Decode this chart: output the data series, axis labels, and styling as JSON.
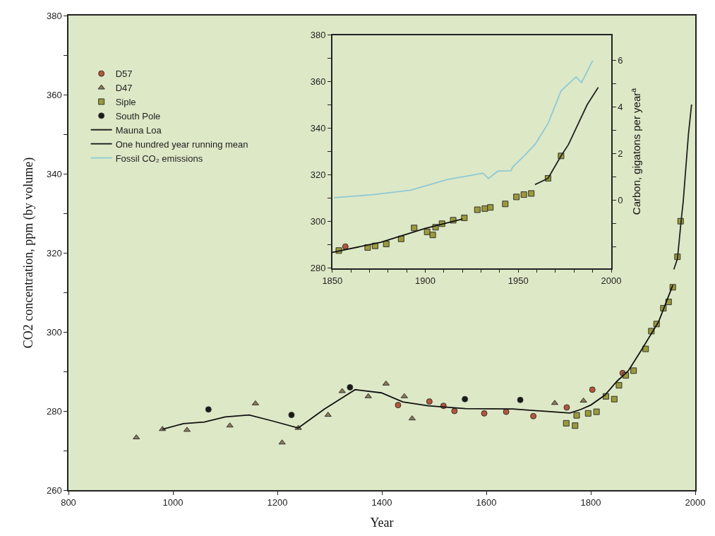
{
  "chart_data": [
    {
      "type": "scatter",
      "xlabel": "Year",
      "ylabel": "CO2 concentration, ppm (by volume)",
      "xlim": [
        800,
        2000
      ],
      "xticks": [
        800,
        1000,
        1200,
        1400,
        1600,
        1800,
        2000
      ],
      "ylim": [
        260,
        380
      ],
      "yticks": [
        260,
        {
          "value": 270,
          "label": null
        },
        280,
        {
          "value": 290,
          "label": null
        },
        300,
        {
          "value": 310,
          "label": null
        },
        320,
        {
          "value": 330,
          "label": null
        },
        340,
        {
          "value": 350,
          "label": null
        },
        360,
        {
          "value": 370,
          "label": null
        },
        380
      ],
      "grid": false,
      "legend": "top left",
      "series": [
        {
          "name": "D57",
          "type": "scatter",
          "marker": "circle",
          "color": "#b5553a",
          "x": [
            1431,
            1491,
            1518,
            1539,
            1596,
            1638,
            1690,
            1754,
            1803,
            1861
          ],
          "values": [
            281.5,
            282.4,
            281.3,
            280,
            279.4,
            279.8,
            278.7,
            280.9,
            285.4,
            289.6
          ]
        },
        {
          "name": "D47",
          "type": "scatter",
          "marker": "triangle",
          "color": "#8a7a5a",
          "x": [
            930,
            980,
            1027,
            1109,
            1158,
            1209,
            1240,
            1297,
            1324,
            1374,
            1408,
            1443,
            1458,
            1731,
            1786
          ],
          "values": [
            273.3,
            275.4,
            275.2,
            276.3,
            281.9,
            272,
            275.7,
            279,
            285,
            283.7,
            286.9,
            283.7,
            278.1,
            282,
            282.6
          ]
        },
        {
          "name": "Siple",
          "type": "scatter",
          "marker": "square",
          "color": "#9a9a3a",
          "x": [
            1753,
            1770,
            1773,
            1795,
            1811,
            1829,
            1845,
            1854,
            1867,
            1882,
            1905,
            1916,
            1926,
            1939,
            1949,
            1957,
            1966,
            1972
          ],
          "values": [
            276.9,
            276.3,
            278.9,
            279.4,
            279.8,
            283.7,
            283,
            286.5,
            289,
            290.2,
            295.7,
            300.2,
            302,
            306,
            307.6,
            311.3,
            319,
            328
          ]
        },
        {
          "name": "South Pole",
          "type": "scatter",
          "marker": "circle",
          "color": "#1a1a1a",
          "x": [
            1068,
            1227,
            1339,
            1559,
            1665
          ],
          "values": [
            280.4,
            279,
            286,
            283,
            282.8
          ]
        },
        {
          "name": "Mauna Loa",
          "type": "line",
          "color": "#222222",
          "x": [
            1959,
            1966,
            1973,
            1977,
            1987,
            1993
          ],
          "values": [
            315.8,
            318.5,
            328.1,
            333,
            350,
            357.5
          ]
        },
        {
          "name": "One hundred year running mean",
          "type": "line",
          "color": "#111111",
          "x": [
            980,
            1020,
            1060,
            1100,
            1146,
            1190,
            1240,
            1290,
            1349,
            1399,
            1440,
            1489,
            1560,
            1651,
            1727,
            1760,
            1781,
            1800,
            1827,
            1850,
            1872,
            1895,
            1930,
            1957
          ],
          "values": [
            275.4,
            276.8,
            277.2,
            278.5,
            279,
            277.5,
            275.7,
            280.5,
            285.4,
            284.6,
            282.3,
            281.3,
            280.6,
            280.5,
            279.8,
            279.5,
            280.4,
            281.5,
            284,
            287.5,
            290.2,
            295,
            302.6,
            311.8
          ]
        }
      ]
    },
    {
      "type": "scatter",
      "y2label": "Carbon, gigatons per year$^{a}$",
      "xlim": [
        1850,
        2000
      ],
      "xticks": [
        1850,
        {
          "value": 1860,
          "label": null
        },
        {
          "value": 1870,
          "label": null
        },
        {
          "value": 1880,
          "label": null
        },
        {
          "value": 1890,
          "label": null
        },
        1900,
        {
          "value": 1910,
          "label": null
        },
        {
          "value": 1920,
          "label": null
        },
        {
          "value": 1930,
          "label": null
        },
        {
          "value": 1940,
          "label": null
        },
        1950,
        {
          "value": 1960,
          "label": null
        },
        {
          "value": 1970,
          "label": null
        },
        {
          "value": 1980,
          "label": null
        },
        {
          "value": 1990,
          "label": null
        },
        2000
      ],
      "ylim": [
        280,
        380
      ],
      "yticks": [
        280,
        {
          "value": 290,
          "label": null
        },
        300,
        {
          "value": 310,
          "label": null
        },
        320,
        {
          "value": 330,
          "label": null
        },
        340,
        {
          "value": 350,
          "label": null
        },
        360,
        {
          "value": 370,
          "label": null
        },
        380
      ],
      "y2lim": [
        -2.9,
        7.1
      ],
      "y2ticks": [
        {
          "value": -2,
          "label": null
        },
        {
          "value": -1,
          "label": null
        },
        0,
        {
          "value": 1,
          "label": null
        },
        2,
        {
          "value": 3,
          "label": null
        },
        4,
        {
          "value": 5,
          "label": null
        },
        6
      ],
      "grid": false,
      "series": [
        {
          "type": "scatter",
          "marker": "square",
          "color": "#9a9a3a",
          "x": [
            1853.5,
            1869,
            1873,
            1879,
            1887,
            1894,
            1901,
            1904,
            1905.5,
            1909,
            1915,
            1921,
            1928,
            1932,
            1935,
            1943,
            1949,
            1953,
            1957,
            1966,
            1973
          ],
          "values": [
            287.5,
            288.8,
            289.5,
            290.3,
            292.5,
            297.2,
            295.5,
            294.2,
            297.5,
            299,
            300.5,
            301.5,
            305,
            305.5,
            306,
            307.5,
            310.5,
            311.5,
            312,
            318.5,
            328.1
          ]
        },
        {
          "type": "scatter",
          "marker": "circle",
          "color": "#b5553a",
          "x": [
            1857
          ],
          "values": [
            289.2
          ]
        },
        {
          "type": "line",
          "color": "#222222",
          "x": [
            1959,
            1966,
            1973,
            1977,
            1987,
            1993
          ],
          "values": [
            315.8,
            318.5,
            328.1,
            333,
            350,
            357.5
          ]
        },
        {
          "type": "line",
          "color": "#111111",
          "x": [
            1850,
            1876,
            1900,
            1920
          ],
          "values": [
            286.7,
            291,
            297,
            301
          ]
        },
        {
          "name": "Fossil CO₂ emissions",
          "type": "line",
          "axis": "y2",
          "color": "#8ec9d6",
          "x": [
            1851,
            1871,
            1892,
            1912,
            1926,
            1931,
            1934,
            1939,
            1946,
            1947,
            1953,
            1959,
            1966,
            1973,
            1979,
            1981,
            1984,
            1990
          ],
          "values": [
            0.12,
            0.24,
            0.44,
            0.9,
            1.1,
            1.17,
            0.94,
            1.26,
            1.27,
            1.43,
            1.9,
            2.4,
            3.3,
            4.7,
            5.15,
            5.3,
            5.06,
            6.0
          ]
        }
      ]
    }
  ]
}
